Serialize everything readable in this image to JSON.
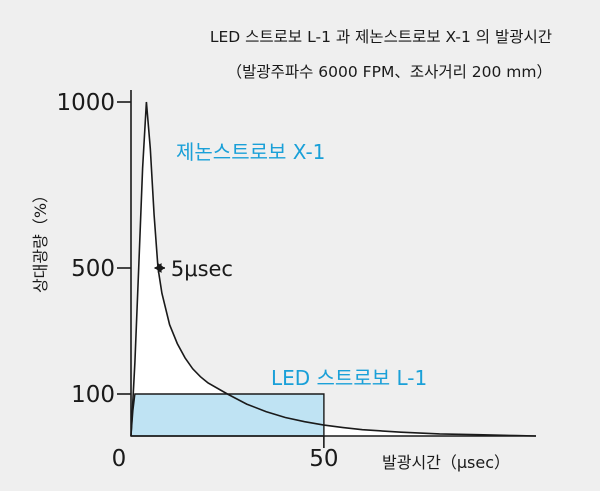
{
  "title": "LED 스트로보 L-1 과 제논스트로보 X-1 의 발광시간",
  "subtitle": "（발광주파수 6000 FPM、조사거리 200 mm）",
  "colors": {
    "background": "#efefef",
    "axis": "#1a1a1a",
    "led_fill": "#bfe3f3",
    "led_label": "#1aa0d8",
    "xenon_label": "#1aa0d8",
    "xenon_fill": "#ffffff"
  },
  "chart_data": {
    "type": "area",
    "title": "LED 스트로보 L-1 과 제논스트로보 X-1 의 발광시간",
    "subtitle": "（발광주파수 6000 FPM、조사거리 200 mm）",
    "xlabel": "발광시간（μsec）",
    "ylabel": "상대광량（%）",
    "x_ticks": [
      "0",
      "50"
    ],
    "y_ticks": [
      "100",
      "500",
      "1000"
    ],
    "xlim": [
      0,
      105
    ],
    "ylim": [
      0,
      1050
    ],
    "series": [
      {
        "name": "제논스트로보 X-1",
        "x": [
          0,
          1,
          2,
          3,
          4,
          5,
          6,
          7,
          8,
          10,
          12,
          14,
          16,
          18,
          20,
          25,
          30,
          35,
          40,
          45,
          50,
          55,
          60,
          70,
          80,
          90,
          100,
          105
        ],
        "y": [
          0,
          200,
          500,
          800,
          1000,
          860,
          660,
          500,
          420,
          320,
          260,
          215,
          180,
          155,
          135,
          100,
          76,
          58,
          44,
          34,
          26,
          20,
          15,
          9,
          5,
          3,
          1,
          0
        ]
      },
      {
        "name": "LED 스트로보 L-1",
        "x": [
          0,
          0.5,
          1,
          50,
          50
        ],
        "y": [
          0,
          60,
          100,
          100,
          0
        ]
      }
    ],
    "annotations": [
      {
        "text": "5μsec",
        "x_from": 3,
        "x_to": 8,
        "y": 500
      }
    ]
  }
}
